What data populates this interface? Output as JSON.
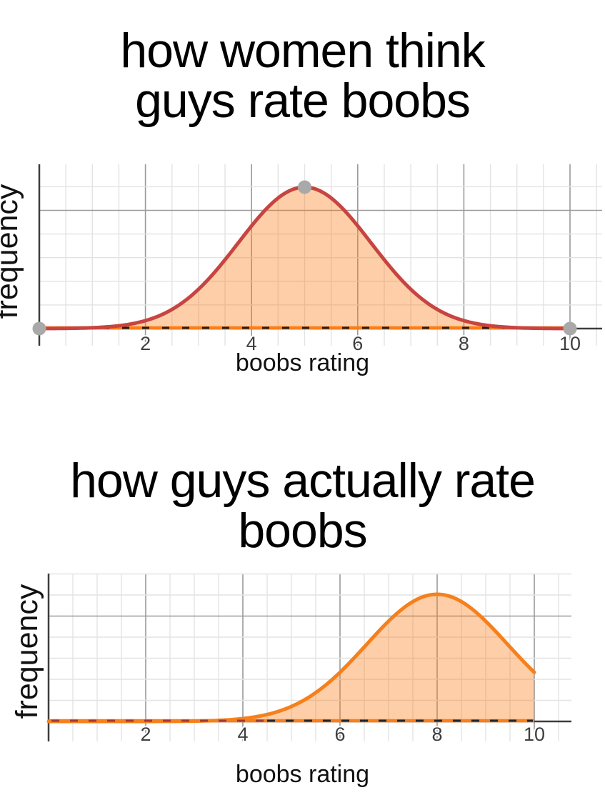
{
  "page": {
    "background": "#ffffff",
    "text_color": "#000000"
  },
  "chart_data": [
    {
      "type": "area",
      "title": "how women think guys rate boobs",
      "title_lines": [
        "how women think",
        "guys rate boobs"
      ],
      "xlabel": "boobs rating",
      "ylabel": "frequency",
      "x_ticks": [
        "2",
        "4",
        "6",
        "8",
        "10"
      ],
      "x_tick_values": [
        2,
        4,
        6,
        8,
        10
      ],
      "x_range": [
        0,
        10
      ],
      "grid": true,
      "curve": {
        "shape": "gaussian",
        "mu": 5,
        "sigma": 1.25,
        "clip_max_x": 10
      },
      "x": [
        0,
        1,
        2,
        3,
        4,
        5,
        6,
        7,
        8,
        9,
        10
      ],
      "y_relative": [
        0.0003,
        0.006,
        0.056,
        0.278,
        0.726,
        1,
        0.726,
        0.278,
        0.056,
        0.006,
        0.0003
      ],
      "peak_x": 5,
      "colors": {
        "stroke": "#c74440",
        "fill": "rgba(250,126,25,0.38)",
        "baseline": "#fa7e19",
        "baseline_dashes": [
          "#1c1c1c"
        ],
        "marker": "#a9a9a9",
        "axis": "#3d3d3d",
        "grid_minor": "#e3e3e3",
        "grid_major": "#9a9a9a",
        "tick_text": "#3f3f3f"
      },
      "markers": [
        {
          "x": 0,
          "y": 0
        },
        {
          "x": 5,
          "y": 1
        },
        {
          "x": 10,
          "y": 0
        }
      ]
    },
    {
      "type": "area",
      "title": "how guys actually rate boobs",
      "title_lines": [
        "how guys actually rate",
        "boobs"
      ],
      "xlabel": "boobs rating",
      "ylabel": "frequency",
      "x_ticks": [
        "2",
        "4",
        "6",
        "8",
        "10"
      ],
      "x_tick_values": [
        2,
        4,
        6,
        8,
        10
      ],
      "x_range": [
        0,
        10
      ],
      "grid": true,
      "curve": {
        "shape": "gaussian",
        "mu": 8,
        "sigma": 1.45,
        "clip_max_x": 10
      },
      "x": [
        0,
        1,
        2,
        3,
        4,
        5,
        6,
        7,
        8,
        9,
        10
      ],
      "y_relative": [
        0,
        0,
        0.0002,
        0.0026,
        0.022,
        0.118,
        0.386,
        0.788,
        1,
        0.788,
        0.386
      ],
      "peak_x": 8,
      "colors": {
        "stroke": "#f5801c",
        "fill": "rgba(250,126,25,0.38)",
        "baseline": "#fa7e19",
        "baseline_dashes": [
          "#a23a2f",
          "#262626"
        ],
        "marker": null,
        "axis": "#3d3d3d",
        "grid_minor": "#e3e3e3",
        "grid_major": "#9a9a9a",
        "tick_text": "#3f3f3f"
      },
      "markers": []
    }
  ]
}
